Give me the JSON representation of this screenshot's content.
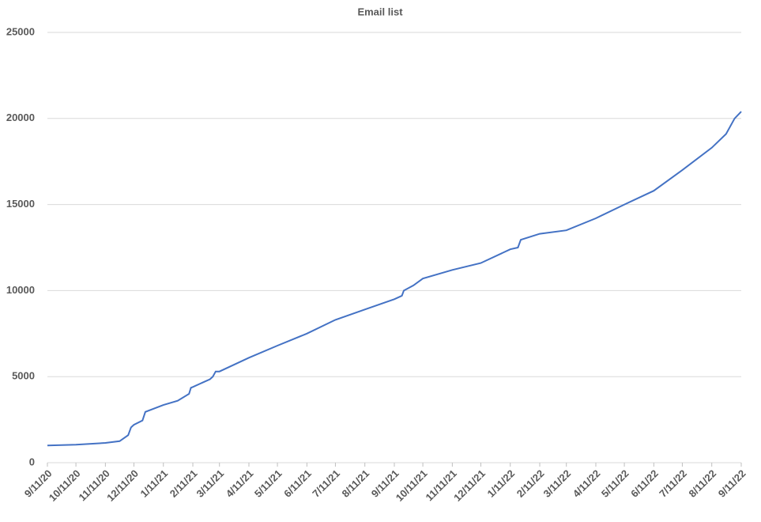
{
  "chart_data": {
    "type": "line",
    "title": "Email list",
    "x": [
      "9/11/20",
      "10/11/20",
      "11/11/20",
      "11/26/20",
      "12/5/20",
      "12/8/20",
      "12/11/20",
      "12/20/20",
      "12/23/20",
      "1/11/21",
      "1/26/21",
      "2/7/21",
      "2/9/21",
      "2/11/21",
      "3/1/21",
      "3/4/21",
      "3/7/21",
      "3/11/21",
      "4/11/21",
      "5/11/21",
      "6/11/21",
      "7/11/21",
      "8/11/21",
      "9/11/21",
      "9/19/21",
      "9/21/21",
      "10/1/21",
      "10/11/21",
      "11/11/21",
      "12/11/21",
      "1/11/22",
      "1/19/22",
      "1/22/22",
      "2/11/22",
      "3/11/22",
      "4/11/22",
      "5/11/22",
      "6/11/22",
      "7/11/22",
      "8/11/22",
      "8/26/22",
      "9/4/22",
      "9/11/22"
    ],
    "series": [
      {
        "name": "Email list",
        "color": "#4472c4",
        "values": [
          1000,
          1050,
          1150,
          1250,
          1600,
          2050,
          2200,
          2450,
          2950,
          3350,
          3600,
          4000,
          4350,
          4400,
          4850,
          5000,
          5300,
          5300,
          6100,
          6800,
          7500,
          8300,
          8900,
          9500,
          9700,
          10000,
          10300,
          10700,
          11200,
          11600,
          12400,
          12500,
          12950,
          13300,
          13500,
          14200,
          15000,
          15800,
          17000,
          18300,
          19100,
          20000,
          20400
        ]
      }
    ],
    "xlim": [
      "9/11/20",
      "9/11/22"
    ],
    "xticks": [
      "9/11/20",
      "10/11/20",
      "11/11/20",
      "12/11/20",
      "1/11/21",
      "2/11/21",
      "3/11/21",
      "4/11/21",
      "5/11/21",
      "6/11/21",
      "7/11/21",
      "8/11/21",
      "9/11/21",
      "10/11/21",
      "11/11/21",
      "12/11/21",
      "1/11/22",
      "2/11/22",
      "3/11/22",
      "4/11/22",
      "5/11/22",
      "6/11/22",
      "7/11/22",
      "8/11/22",
      "9/11/22"
    ],
    "ylim": [
      0,
      25000
    ],
    "yticks": [
      0,
      5000,
      10000,
      15000,
      20000,
      25000
    ],
    "grid": true
  }
}
